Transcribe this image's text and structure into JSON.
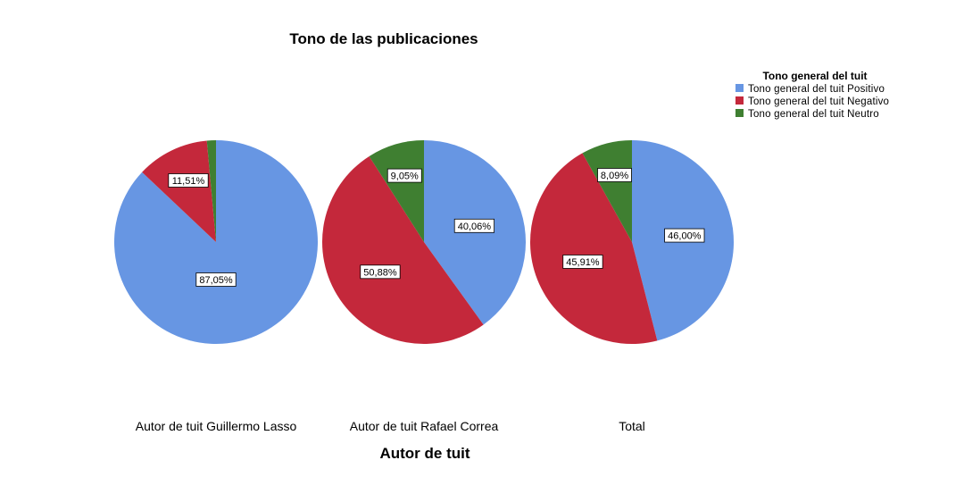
{
  "chart_data": {
    "type": "pie",
    "title": "Tono de las publicaciones",
    "xlabel": "Autor de tuit",
    "legend": {
      "title": "Tono general del tuit",
      "position": "top-right",
      "entries": [
        {
          "label": "Tono general del tuit Positivo",
          "color": "#6796e3"
        },
        {
          "label": "Tono general del tuit Negativo",
          "color": "#c4283b"
        },
        {
          "label": "Tono general del tuit Neutro",
          "color": "#3f7f31"
        }
      ]
    },
    "series_names": [
      "Positivo",
      "Negativo",
      "Neutro"
    ],
    "charts": [
      {
        "category": "Autor de tuit Guillermo Lasso",
        "values": [
          87.05,
          11.51,
          1.44
        ],
        "labels": [
          "87,05%",
          "11,51%",
          null
        ]
      },
      {
        "category": "Autor de tuit Rafael Correa",
        "values": [
          40.06,
          50.88,
          9.05
        ],
        "labels": [
          "40,06%",
          "50,88%",
          "9,05%"
        ]
      },
      {
        "category": "Total",
        "values": [
          46.0,
          45.91,
          8.09
        ],
        "labels": [
          "46,00%",
          "45,91%",
          "8,09%"
        ]
      }
    ]
  }
}
